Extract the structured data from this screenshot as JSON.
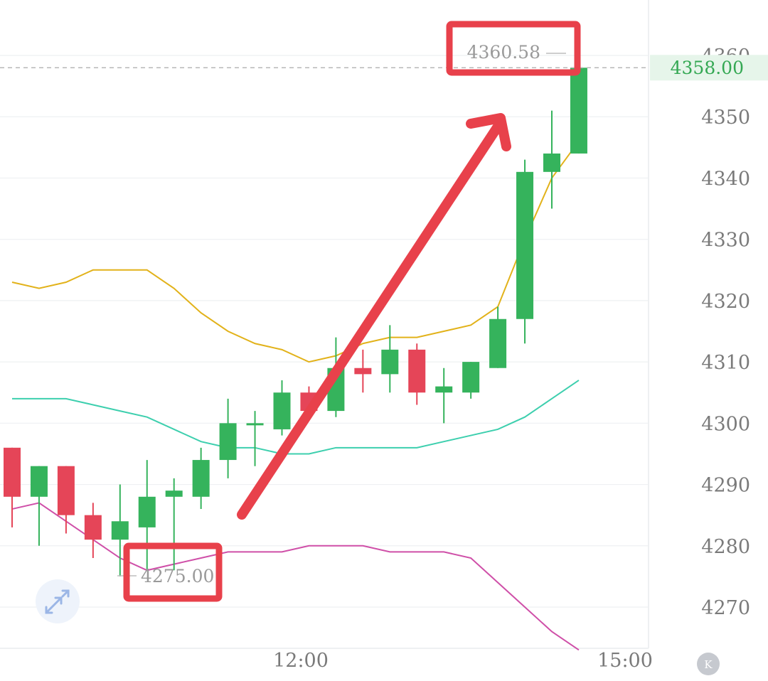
{
  "chart_data": {
    "type": "candlestick",
    "x_ticks": [
      "12:00",
      "15:00"
    ],
    "y_ticks": [
      4270,
      4280,
      4290,
      4300,
      4310,
      4320,
      4330,
      4340,
      4350,
      4360
    ],
    "ylim": [
      4264,
      4366
    ],
    "grid": true,
    "current_price": "4358.00",
    "annotations": {
      "high_label": "4360.58",
      "low_label": "4275.00"
    },
    "candles": [
      {
        "open": 4296,
        "high": 4296,
        "low": 4283,
        "close": 4288
      },
      {
        "open": 4288,
        "high": 4293,
        "low": 4280,
        "close": 4293
      },
      {
        "open": 4293,
        "high": 4293,
        "low": 4282,
        "close": 4285
      },
      {
        "open": 4285,
        "high": 4287,
        "low": 4278,
        "close": 4281
      },
      {
        "open": 4281,
        "high": 4290,
        "low": 4275,
        "close": 4284
      },
      {
        "open": 4283,
        "high": 4294,
        "low": 4276,
        "close": 4288
      },
      {
        "open": 4288,
        "high": 4291,
        "low": 4276,
        "close": 4289
      },
      {
        "open": 4288,
        "high": 4296,
        "low": 4286,
        "close": 4294
      },
      {
        "open": 4294,
        "high": 4304,
        "low": 4291,
        "close": 4300
      },
      {
        "open": 4300,
        "high": 4302,
        "low": 4293,
        "close": 4300
      },
      {
        "open": 4299,
        "high": 4307,
        "low": 4298,
        "close": 4305
      },
      {
        "open": 4305,
        "high": 4306,
        "low": 4301,
        "close": 4302
      },
      {
        "open": 4302,
        "high": 4314,
        "low": 4301,
        "close": 4309
      },
      {
        "open": 4309,
        "high": 4312,
        "low": 4305,
        "close": 4308
      },
      {
        "open": 4308,
        "high": 4316,
        "low": 4305,
        "close": 4312
      },
      {
        "open": 4312,
        "high": 4313,
        "low": 4303,
        "close": 4305
      },
      {
        "open": 4305,
        "high": 4309,
        "low": 4300,
        "close": 4306
      },
      {
        "open": 4305,
        "high": 4310,
        "low": 4304,
        "close": 4310
      },
      {
        "open": 4309,
        "high": 4319,
        "low": 4309,
        "close": 4317
      },
      {
        "open": 4317,
        "high": 4343,
        "low": 4313,
        "close": 4341
      },
      {
        "open": 4341,
        "high": 4351,
        "low": 4335,
        "close": 4344
      },
      {
        "open": 4344,
        "high": 4361,
        "low": 4344,
        "close": 4358
      }
    ],
    "series": [
      {
        "role": "upper_band",
        "color": "#e2b21a",
        "values": [
          4323,
          4322,
          4323,
          4325,
          4325,
          4325,
          4322,
          4318,
          4315,
          4313,
          4312,
          4310,
          4311,
          4313,
          4314,
          4314,
          4315,
          4316,
          4319,
          4330,
          4340,
          4346
        ]
      },
      {
        "role": "middle_band",
        "color": "#3dcfae",
        "values": [
          4304,
          4304,
          4304,
          4303,
          4302,
          4301,
          4299,
          4297,
          4296,
          4296,
          4295,
          4295,
          4296,
          4296,
          4296,
          4296,
          4297,
          4298,
          4299,
          4301,
          4304,
          4307
        ]
      },
      {
        "role": "lower_band",
        "color": "#cf4fa8",
        "values": [
          4286,
          4287,
          4284,
          4281,
          4278,
          4276,
          4277,
          4278,
          4279,
          4279,
          4279,
          4280,
          4280,
          4280,
          4279,
          4279,
          4279,
          4278,
          4274,
          4270,
          4266,
          4263
        ]
      }
    ],
    "colors": {
      "up": "#35b35c",
      "down": "#e54558",
      "highlight": "#e8414b",
      "axis_text": "#7a7a7a",
      "price_tag_bg": "#e6f5ea",
      "price_tag_text": "#34a853",
      "grid": "#eef0f2",
      "dashed_price_line": "#b8b8b8"
    }
  },
  "icons": {
    "expand": "expand-arrows-icon",
    "toggle": "k-icon"
  },
  "toggle_label": "K"
}
